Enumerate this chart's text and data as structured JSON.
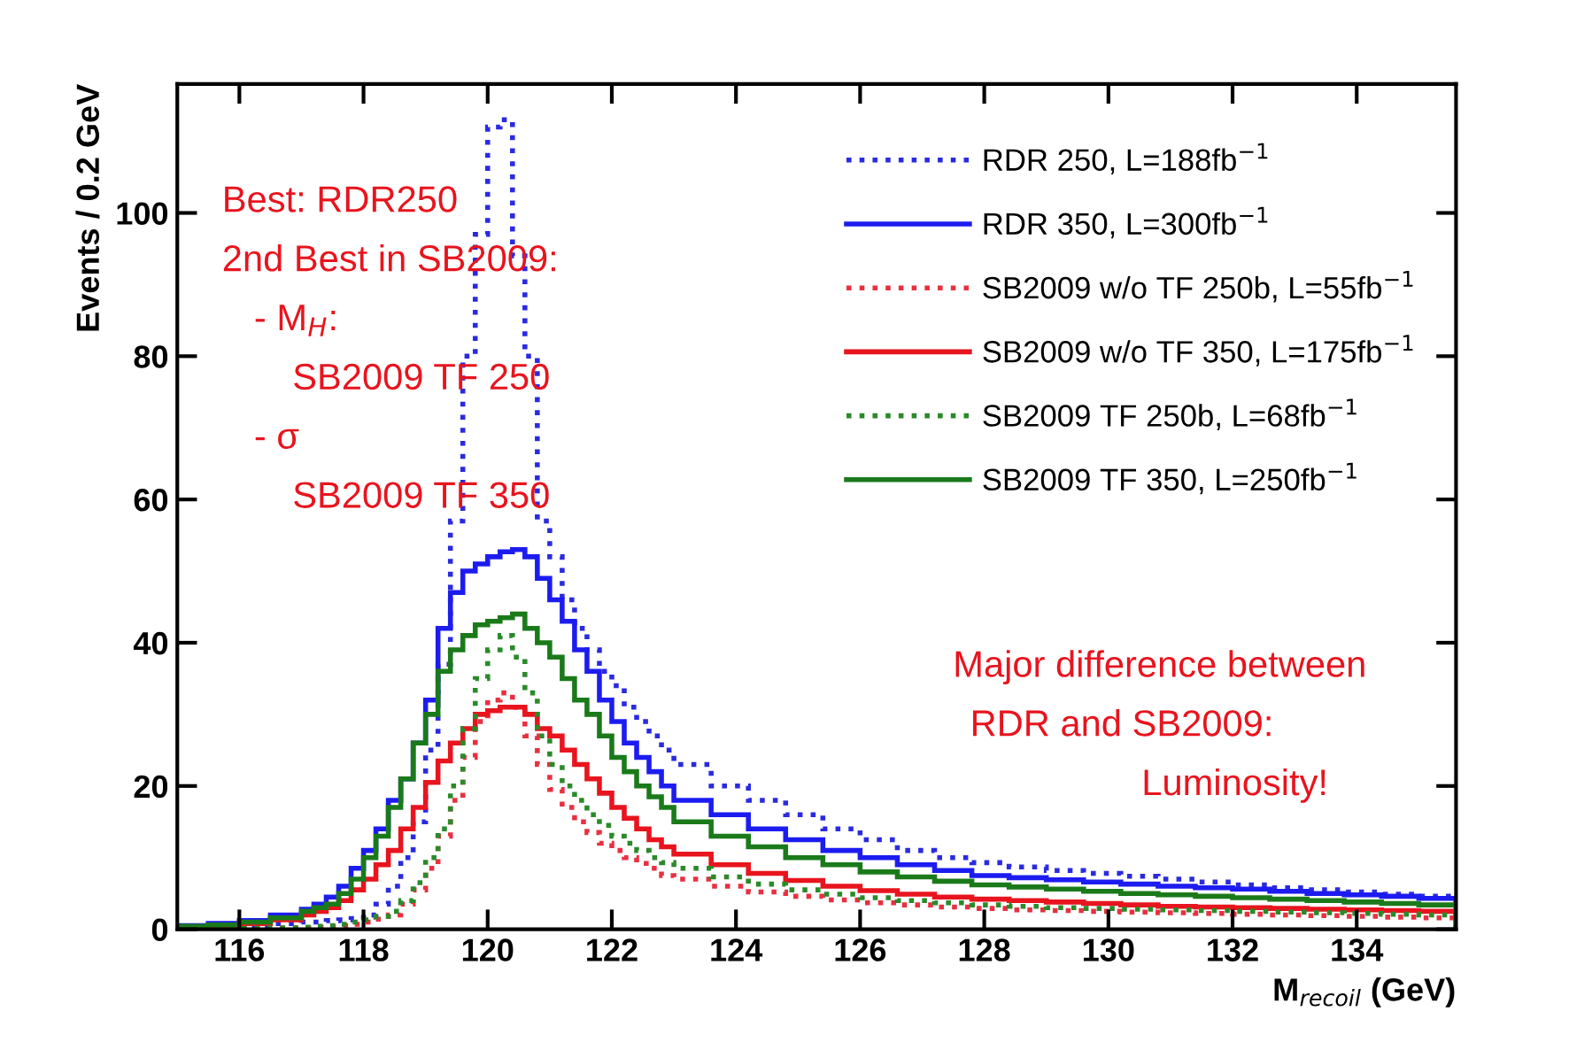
{
  "chart_data": {
    "type": "histogram",
    "xlabel": "M$_{recoil}$ (GeV)",
    "ylabel": "Events / 0.2 GeV",
    "bins": [
      115,
      115.5,
      116,
      116.5,
      117,
      117.2,
      117.4,
      117.6,
      117.8,
      118,
      118.2,
      118.4,
      118.6,
      118.8,
      119,
      119.2,
      119.4,
      119.6,
      119.8,
      120,
      120.2,
      120.4,
      120.6,
      120.8,
      121,
      121.2,
      121.4,
      121.6,
      121.8,
      122,
      122.2,
      122.4,
      122.6,
      122.8,
      123,
      123.6,
      124.2,
      124.8,
      125.4,
      126,
      126.6,
      127.2,
      127.8,
      128.4,
      129,
      129.6,
      130.2,
      130.8,
      131.4,
      132,
      132.6,
      133.2,
      133.8,
      134.4,
      135,
      135.6
    ],
    "series": [
      {
        "name": "RDR 250, L=188fb$^{−1}$",
        "color": "#2a2ae0",
        "line_style": "dotted",
        "values": [
          0.2,
          0.3,
          0.5,
          0.8,
          1,
          1,
          1.2,
          1.3,
          1.5,
          2,
          3.5,
          6,
          10,
          15,
          25,
          37,
          57,
          80,
          97,
          112,
          113,
          94,
          80,
          57,
          52,
          46,
          42,
          39,
          36,
          34,
          31,
          29,
          27,
          25,
          23,
          20,
          18,
          16,
          14,
          12.5,
          11,
          10,
          9.3,
          8.7,
          8.2,
          7.8,
          7.4,
          7,
          6.6,
          6.2,
          5.8,
          5.5,
          5.2,
          4.9,
          4.6
        ]
      },
      {
        "name": "RDR 350, L=300fb$^{−1}$",
        "color": "#1c1cf0",
        "line_style": "solid",
        "values": [
          0.5,
          0.8,
          1.2,
          2,
          2.8,
          3.5,
          4.5,
          6,
          8.5,
          11,
          14,
          18,
          21,
          26,
          32,
          42,
          47,
          50,
          51,
          52,
          52.7,
          53,
          52,
          49,
          46,
          43,
          39,
          36,
          32,
          29,
          26,
          24,
          22,
          20,
          18,
          16,
          14,
          12.5,
          11,
          10,
          9,
          8.2,
          7.5,
          7.2,
          6.9,
          6.6,
          6.3,
          6,
          5.8,
          5.6,
          5.3,
          5,
          4.8,
          4.6,
          4.3
        ]
      },
      {
        "name": "SB2009 w/o TF 250b, L=55fb$^{−1}$",
        "color": "#e83040",
        "line_style": "dotted",
        "values": [
          0,
          0.1,
          0.1,
          0.2,
          0.2,
          0.3,
          0.4,
          0.5,
          0.7,
          1,
          1.4,
          2,
          3.5,
          5.5,
          8.5,
          13,
          18,
          24,
          29,
          32,
          33,
          31,
          27,
          23,
          19.5,
          17,
          15,
          13.5,
          12,
          11,
          10,
          9.2,
          8.5,
          7.5,
          7,
          6,
          5.2,
          4.6,
          4.1,
          3.7,
          3.4,
          3.1,
          2.9,
          2.7,
          2.6,
          2.5,
          2.4,
          2.3,
          2.2,
          2.1,
          2,
          1.9,
          1.8,
          1.7,
          1.6
        ]
      },
      {
        "name": "SB2009 w/o TF 350, L=175fb$^{−1}$",
        "color": "#e8141e",
        "line_style": "solid",
        "values": [
          0.3,
          0.5,
          0.8,
          1.3,
          2,
          2.5,
          3,
          4,
          5.5,
          7,
          9,
          11,
          14,
          17,
          20.5,
          23.5,
          26,
          28,
          30,
          30.5,
          31,
          31,
          30,
          28,
          27,
          25,
          23,
          21,
          19,
          17,
          15.5,
          14,
          12.5,
          11.5,
          10.5,
          9,
          7.8,
          6.8,
          6,
          5.4,
          4.9,
          4.5,
          4.2,
          4,
          3.8,
          3.6,
          3.4,
          3.2,
          3.1,
          3,
          2.9,
          2.8,
          2.7,
          2.6,
          2.5
        ]
      },
      {
        "name": "SB2009 TF 250b, L=68fb$^{−1}$",
        "color": "#2a8a2a",
        "line_style": "dotted",
        "values": [
          0,
          0.1,
          0.1,
          0.2,
          0.3,
          0.4,
          0.5,
          0.7,
          1,
          1.3,
          1.8,
          2.5,
          4,
          6.5,
          10,
          14,
          20,
          28,
          35,
          39,
          41,
          38,
          33,
          27,
          23,
          20,
          18,
          16,
          14.5,
          13,
          12,
          11,
          10,
          9.3,
          8.5,
          7.3,
          6.3,
          5.5,
          4.9,
          4.4,
          4,
          3.7,
          3.4,
          3.2,
          3,
          2.9,
          2.8,
          2.7,
          2.6,
          2.5,
          2.4,
          2.3,
          2.2,
          2.1,
          2
        ]
      },
      {
        "name": "SB2009 TF 350, L=250fb$^{−1}$",
        "color": "#1a7a1a",
        "line_style": "solid",
        "values": [
          0.4,
          0.6,
          1,
          1.6,
          2.5,
          3,
          3.5,
          5,
          7,
          10,
          13,
          17,
          21,
          26,
          30,
          36,
          39,
          41,
          42.5,
          43,
          43.5,
          44,
          42,
          40,
          38,
          35,
          32,
          30,
          27,
          24,
          22,
          20,
          18.5,
          17,
          15,
          13,
          11.5,
          10,
          9,
          8,
          7.3,
          6.7,
          6.2,
          5.9,
          5.6,
          5.3,
          5,
          4.8,
          4.6,
          4.4,
          4.2,
          4,
          3.8,
          3.6,
          3.4
        ]
      }
    ],
    "xlim": [
      115,
      135.6
    ],
    "ylim": [
      0,
      118
    ],
    "xticks": [
      116,
      118,
      120,
      122,
      124,
      126,
      128,
      130,
      132,
      134
    ],
    "yticks": [
      0,
      20,
      40,
      60,
      80,
      100
    ],
    "legend": "top right",
    "grid": false,
    "annotations": [
      "Best: RDR250",
      "2nd Best in SB2009:",
      "- M$_{H}$:",
      "SB2009 TF 250",
      "- σ",
      "SB2009 TF 350",
      "Major difference between",
      "RDR and SB2009:",
      "Luminosity!"
    ]
  }
}
